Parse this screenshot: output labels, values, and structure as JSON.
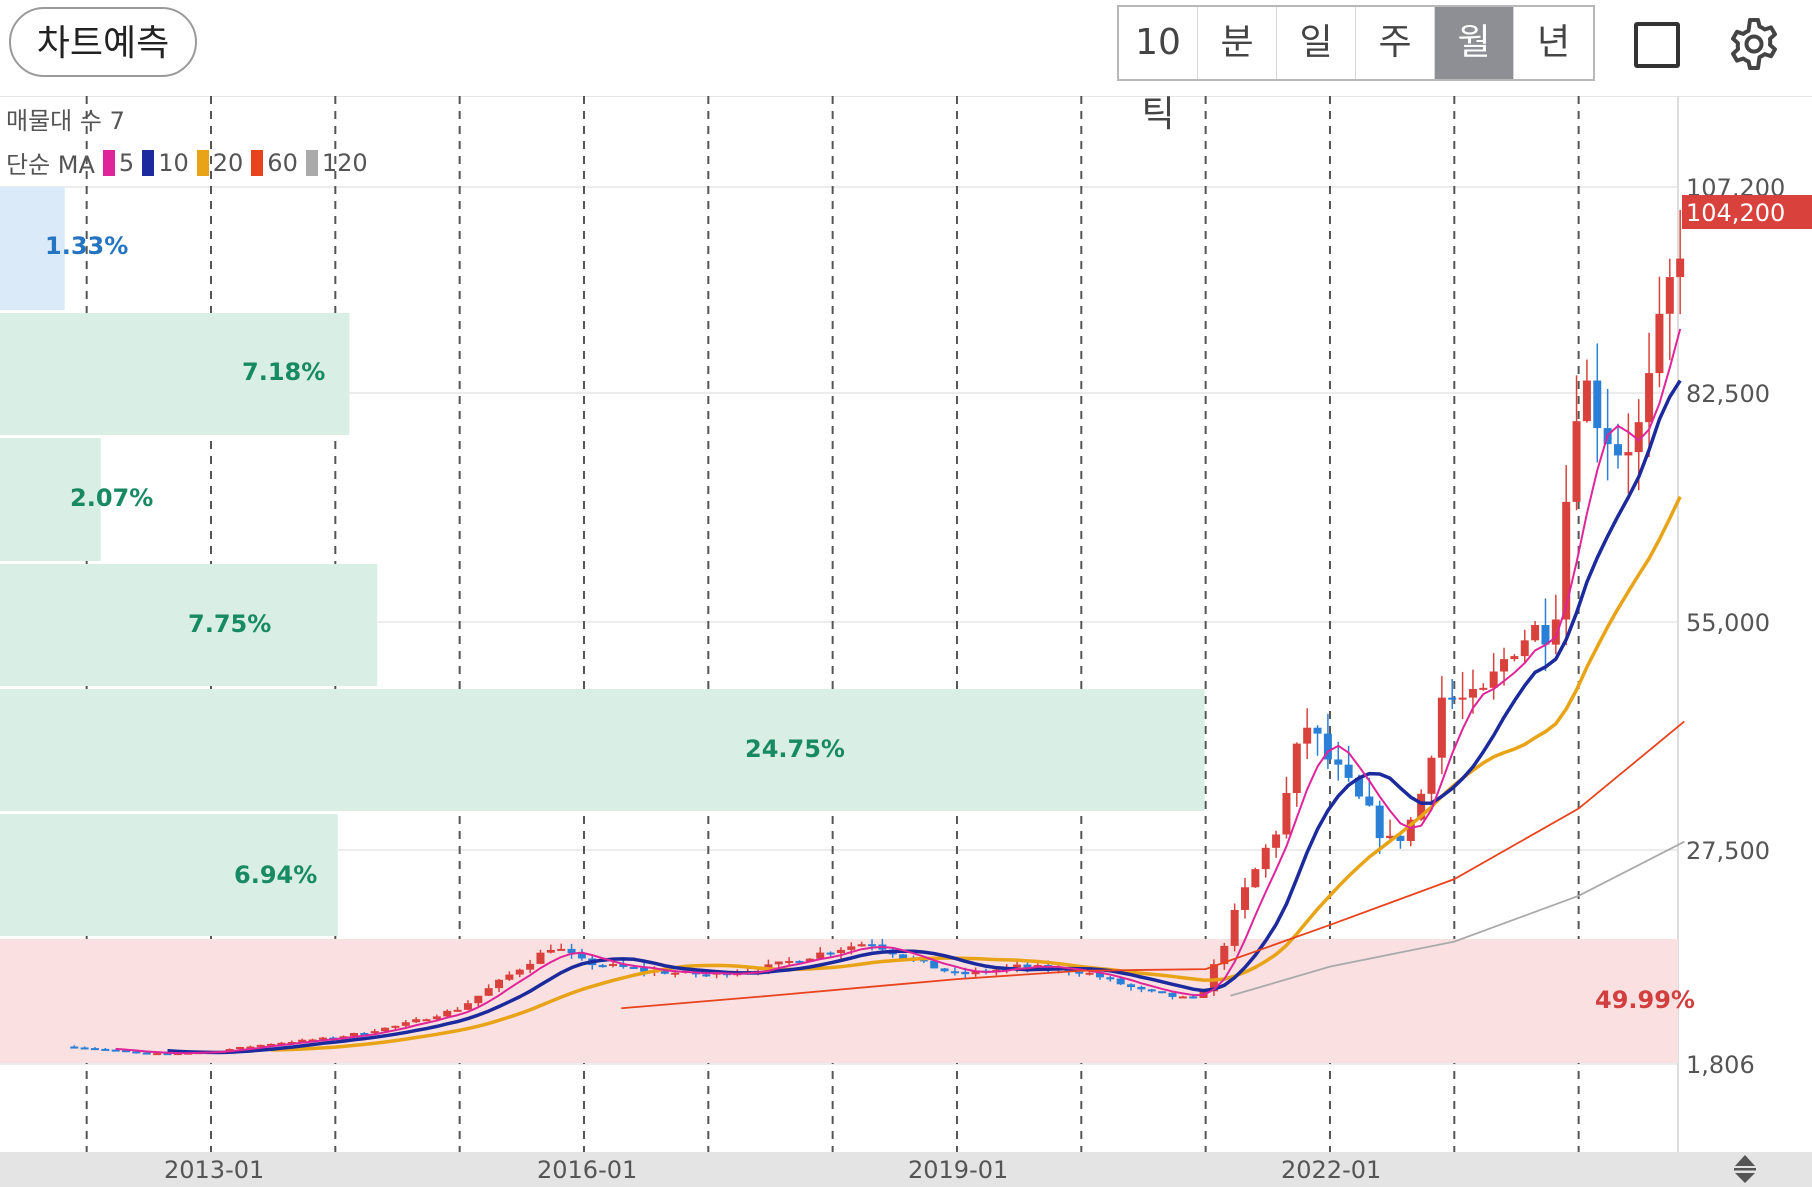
{
  "header": {
    "predict_button": "차트예측",
    "periods": [
      "10틱",
      "분",
      "일",
      "주",
      "월",
      "년"
    ],
    "active_period": "월",
    "square_icon": "square-icon",
    "settings_icon": "gear-icon"
  },
  "legend": {
    "volume_profile_label": "매물대 수 7",
    "ma_label": "단순 MA",
    "ma": [
      {
        "period": "5",
        "color": "#e0249a"
      },
      {
        "period": "10",
        "color": "#1b2a9c"
      },
      {
        "period": "20",
        "color": "#e8a317"
      },
      {
        "period": "60",
        "color": "#e8431d"
      },
      {
        "period": "120",
        "color": "#aaaaaa"
      }
    ]
  },
  "chart_data": {
    "type": "candlestick",
    "interval": "monthly",
    "x_ticks": [
      "2013-01",
      "2016-01",
      "2019-01",
      "2022-01"
    ],
    "y_ticks": [
      "107,200",
      "82,500",
      "55,000",
      "27,500",
      "1,806"
    ],
    "y_tick_values": [
      107200,
      82500,
      55000,
      27500,
      1806
    ],
    "ylim": [
      1806,
      107200
    ],
    "current_price": {
      "label": "104,200",
      "value": 104200,
      "color": "#d9413d"
    },
    "up_color": "#d9413d",
    "down_color": "#2a7fd6",
    "volume_profile": [
      {
        "label": "1.33%",
        "value": 1.33,
        "color": "#2474c2"
      },
      {
        "label": "7.18%",
        "value": 7.18,
        "color": "#178a63"
      },
      {
        "label": "2.07%",
        "value": 2.07,
        "color": "#178a63"
      },
      {
        "label": "7.75%",
        "value": 7.75,
        "color": "#178a63"
      },
      {
        "label": "24.75%",
        "value": 24.75,
        "color": "#178a63"
      },
      {
        "label": "6.94%",
        "value": 6.94,
        "color": "#178a63"
      },
      {
        "label": "49.99%",
        "value": 49.99,
        "color": "#d13f3f"
      }
    ],
    "close_anchors": [
      [
        2011.9,
        3900
      ],
      [
        2012.5,
        3000
      ],
      [
        2013.0,
        3300
      ],
      [
        2013.5,
        4300
      ],
      [
        2014.0,
        5000
      ],
      [
        2014.5,
        6400
      ],
      [
        2015.0,
        8500
      ],
      [
        2015.4,
        12500
      ],
      [
        2015.75,
        16000
      ],
      [
        2016.0,
        14000
      ],
      [
        2016.5,
        13000
      ],
      [
        2017.0,
        12500
      ],
      [
        2017.5,
        13500
      ],
      [
        2018.0,
        15500
      ],
      [
        2018.3,
        16500
      ],
      [
        2018.6,
        14500
      ],
      [
        2019.0,
        12500
      ],
      [
        2019.5,
        13500
      ],
      [
        2020.0,
        13000
      ],
      [
        2020.5,
        10500
      ],
      [
        2020.9,
        9500
      ],
      [
        2021.0,
        11000
      ],
      [
        2021.3,
        22000
      ],
      [
        2021.6,
        31000
      ],
      [
        2021.8,
        43000
      ],
      [
        2022.0,
        38000
      ],
      [
        2022.2,
        34000
      ],
      [
        2022.5,
        28000
      ],
      [
        2022.7,
        32000
      ],
      [
        2022.9,
        46000
      ],
      [
        2023.2,
        45000
      ],
      [
        2023.5,
        53000
      ],
      [
        2023.8,
        55000
      ],
      [
        2024.0,
        85000
      ],
      [
        2024.3,
        76000
      ],
      [
        2024.5,
        78000
      ],
      [
        2024.7,
        92000
      ],
      [
        2024.85,
        104200
      ]
    ],
    "moving_averages": [
      {
        "period": 60,
        "color": "#e8431d",
        "values": [
          [
            2016.3,
            8500
          ],
          [
            2017.5,
            10000
          ],
          [
            2019.0,
            12000
          ],
          [
            2020.0,
            13000
          ],
          [
            2021.0,
            13200
          ],
          [
            2022.0,
            18500
          ],
          [
            2023.0,
            24000
          ],
          [
            2024.0,
            32500
          ],
          [
            2024.85,
            43000
          ]
        ]
      },
      {
        "period": 120,
        "color": "#aaaaaa",
        "values": [
          [
            2021.2,
            10000
          ],
          [
            2022.0,
            13500
          ],
          [
            2023.0,
            16500
          ],
          [
            2024.0,
            22000
          ],
          [
            2024.85,
            28500
          ]
        ]
      }
    ]
  }
}
